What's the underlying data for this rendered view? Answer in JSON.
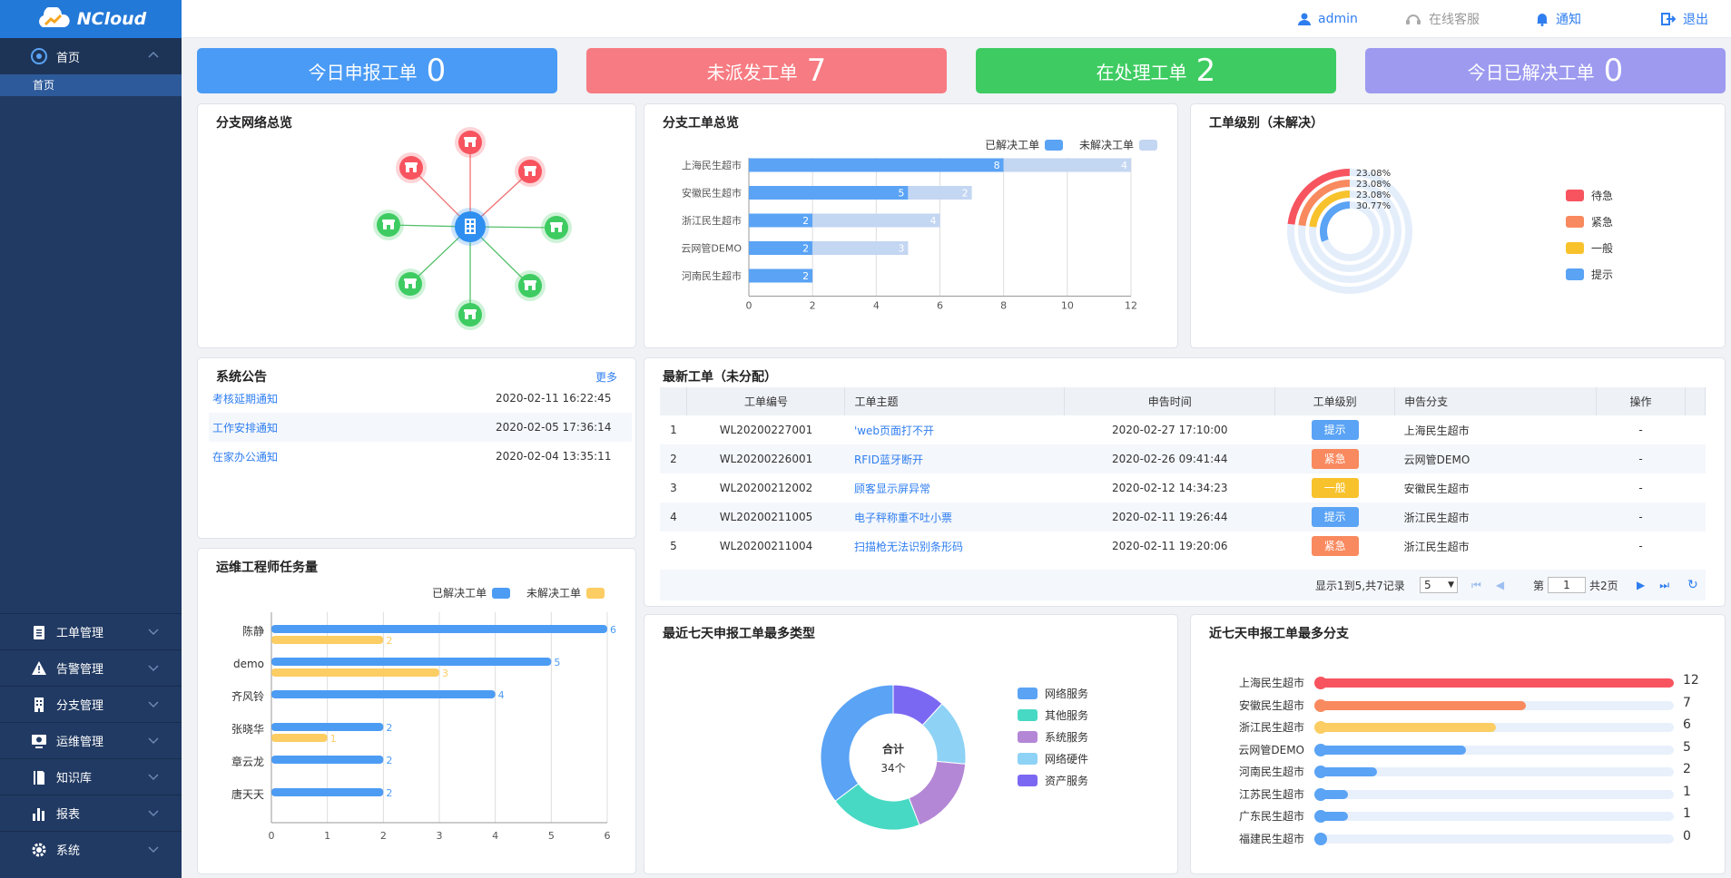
{
  "app": {
    "name": "NCloud"
  },
  "sidebar": {
    "home": {
      "label": "首页",
      "sub": "首页"
    },
    "items": [
      {
        "label": "工单管理",
        "icon": "clipboard-icon"
      },
      {
        "label": "告警管理",
        "icon": "warning-icon"
      },
      {
        "label": "分支管理",
        "icon": "building-icon"
      },
      {
        "label": "运维管理",
        "icon": "monitor-icon"
      },
      {
        "label": "知识库",
        "icon": "book-icon"
      },
      {
        "label": "报表",
        "icon": "bar-chart-icon"
      },
      {
        "label": "系统",
        "icon": "gear-icon"
      }
    ]
  },
  "topbar": {
    "user": "admin",
    "service": "在线客服",
    "notify": "通知",
    "logout": "退出"
  },
  "stats": [
    {
      "label": "今日申报工单",
      "value": "0",
      "color": "#4a9bf5"
    },
    {
      "label": "未派发工单",
      "value": "7",
      "color": "#f77b82"
    },
    {
      "label": "在处理工单",
      "value": "2",
      "color": "#3ecc62"
    },
    {
      "label": "今日已解决工单",
      "value": "0",
      "color": "#9d9af0"
    }
  ],
  "network": {
    "title": "分支网络总览",
    "red_nodes": 3,
    "green_nodes": 5
  },
  "branch_tickets": {
    "title": "分支工单总览",
    "legend": {
      "resolved": "已解决工单",
      "unresolved": "未解决工单"
    },
    "chart_data": {
      "type": "bar",
      "categories": [
        "上海民生超市",
        "安徽民生超市",
        "浙江民生超市",
        "云网管DEMO",
        "河南民生超市"
      ],
      "series": [
        {
          "name": "已解决工单",
          "values": [
            8,
            5,
            2,
            2,
            2
          ],
          "color": "#5aa3f5"
        },
        {
          "name": "未解决工单",
          "values": [
            4,
            2,
            4,
            3,
            0
          ],
          "color": "#c3d6f2"
        }
      ],
      "xlim": [
        0,
        12
      ],
      "xticks": [
        0,
        2,
        4,
        6,
        8,
        10,
        12
      ]
    }
  },
  "levels": {
    "title": "工单级别（未解决）",
    "chart_data": {
      "type": "pie",
      "categories": [
        "待急",
        "紧急",
        "一般",
        "提示"
      ],
      "values": [
        23.08,
        23.08,
        23.08,
        30.77
      ],
      "labels": [
        "23.08%",
        "23.08%",
        "23.08%",
        "30.77%"
      ],
      "colors": [
        "#f7545f",
        "#f9895e",
        "#f8c22c",
        "#5aa3f5"
      ]
    }
  },
  "announcements": {
    "title": "系统公告",
    "more": "更多",
    "rows": [
      {
        "title": "考核延期通知",
        "date": "2020-02-11 16:22:45"
      },
      {
        "title": "工作安排通知",
        "date": "2020-02-05 17:36:14"
      },
      {
        "title": "在家办公通知",
        "date": "2020-02-04 13:35:11"
      }
    ]
  },
  "latest": {
    "title": "最新工单（未分配）",
    "columns": [
      "工单编号",
      "工单主题",
      "申告时间",
      "工单级别",
      "申告分支",
      "操作"
    ],
    "rows": [
      {
        "no": "1",
        "id": "WL20200227001",
        "subject": "'web页面打不开",
        "time": "2020-02-27 17:10:00",
        "level": "提示",
        "color": "#5aa3f5",
        "branch": "上海民生超市",
        "op": "-"
      },
      {
        "no": "2",
        "id": "WL20200226001",
        "subject": "RFID蓝牙断开",
        "time": "2020-02-26 09:41:44",
        "level": "紧急",
        "color": "#f9895e",
        "branch": "云网管DEMO",
        "op": "-"
      },
      {
        "no": "3",
        "id": "WL20200212002",
        "subject": "顾客显示屏异常",
        "time": "2020-02-12 14:34:23",
        "level": "一般",
        "color": "#f8c22c",
        "branch": "安徽民生超市",
        "op": "-"
      },
      {
        "no": "4",
        "id": "WL20200211005",
        "subject": "电子秤称重不吐小票",
        "time": "2020-02-11 19:26:44",
        "level": "提示",
        "color": "#5aa3f5",
        "branch": "浙江民生超市",
        "op": "-"
      },
      {
        "no": "5",
        "id": "WL20200211004",
        "subject": "扫描枪无法识别条形码",
        "time": "2020-02-11 19:20:06",
        "level": "紧急",
        "color": "#f9895e",
        "branch": "浙江民生超市",
        "op": "-"
      }
    ],
    "pager": {
      "summary": "显示1到5,共7记录",
      "page_size": "5",
      "page_prefix": "第",
      "page": "1",
      "page_total": "共2页"
    }
  },
  "engineers": {
    "title": "运维工程师任务量",
    "legend": {
      "resolved": "已解决工单",
      "unresolved": "未解决工单"
    },
    "chart_data": {
      "type": "bar",
      "categories": [
        "陈静",
        "demo",
        "齐风铃",
        "张晓华",
        "章云龙",
        "唐天天"
      ],
      "series": [
        {
          "name": "已解决工单",
          "values": [
            6,
            5,
            4,
            2,
            2,
            2
          ],
          "color": "#4d9cf4"
        },
        {
          "name": "未解决工单",
          "values": [
            2,
            3,
            0,
            1,
            0,
            0
          ],
          "color": "#fbcd63"
        }
      ],
      "xlim": [
        0,
        6
      ],
      "xticks": [
        0,
        1,
        2,
        3,
        4,
        5,
        6
      ]
    }
  },
  "types": {
    "title": "最近七天申报工单最多类型",
    "center_label": "合计",
    "center_value": "34个",
    "chart_data": {
      "type": "pie",
      "categories": [
        "网络服务",
        "其他服务",
        "系统服务",
        "网络硬件",
        "资产服务"
      ],
      "values": [
        12,
        7,
        6,
        5,
        4
      ],
      "colors": [
        "#5aa3f5",
        "#47d9c4",
        "#b487d6",
        "#8ed2f5",
        "#7b68f2"
      ]
    }
  },
  "branches7": {
    "title": "近七天申报工单最多分支",
    "chart_data": {
      "type": "bar",
      "categories": [
        "上海民生超市",
        "安徽民生超市",
        "浙江民生超市",
        "云网管DEMO",
        "河南民生超市",
        "江苏民生超市",
        "广东民生超市",
        "福建民生超市"
      ],
      "values": [
        12,
        7,
        6,
        5,
        2,
        1,
        1,
        0
      ],
      "max": 12,
      "colors": [
        "#f7545f",
        "#f9895e",
        "#fbcd63",
        "#5aa3f5",
        "#5aa3f5",
        "#5aa3f5",
        "#5aa3f5",
        "#5aa3f5"
      ]
    }
  }
}
